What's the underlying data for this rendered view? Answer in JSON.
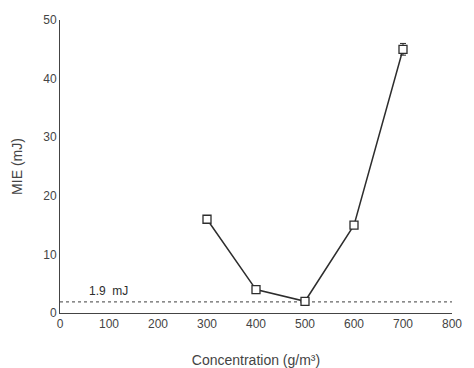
{
  "chart_data": {
    "type": "line",
    "x": [
      300,
      400,
      500,
      600,
      700
    ],
    "series": [
      {
        "values": [
          16.0,
          4.0,
          2.0,
          15.0,
          45.0
        ],
        "yerr": [
          0.3,
          0.3,
          0.3,
          0.5,
          1.0
        ],
        "color": "#2d2d2d",
        "marker": "square-open",
        "line_style": "solid"
      }
    ],
    "reference_line": {
      "y": 1.9,
      "color": "#666666",
      "line_style": "dotted"
    },
    "annotations": [
      {
        "text": "1.9  mJ",
        "x": 55,
        "y": 2.3,
        "color": "#2d2d2d"
      }
    ],
    "xlabel": "Concentration (g/m³)",
    "ylabel": "MIE (mJ)",
    "xlim": [
      0,
      800
    ],
    "ylim": [
      0,
      50
    ],
    "xticks": [
      0,
      100,
      200,
      300,
      400,
      500,
      600,
      700,
      800
    ],
    "yticks": [
      0,
      10,
      20,
      30,
      40,
      50
    ],
    "grid": false
  }
}
